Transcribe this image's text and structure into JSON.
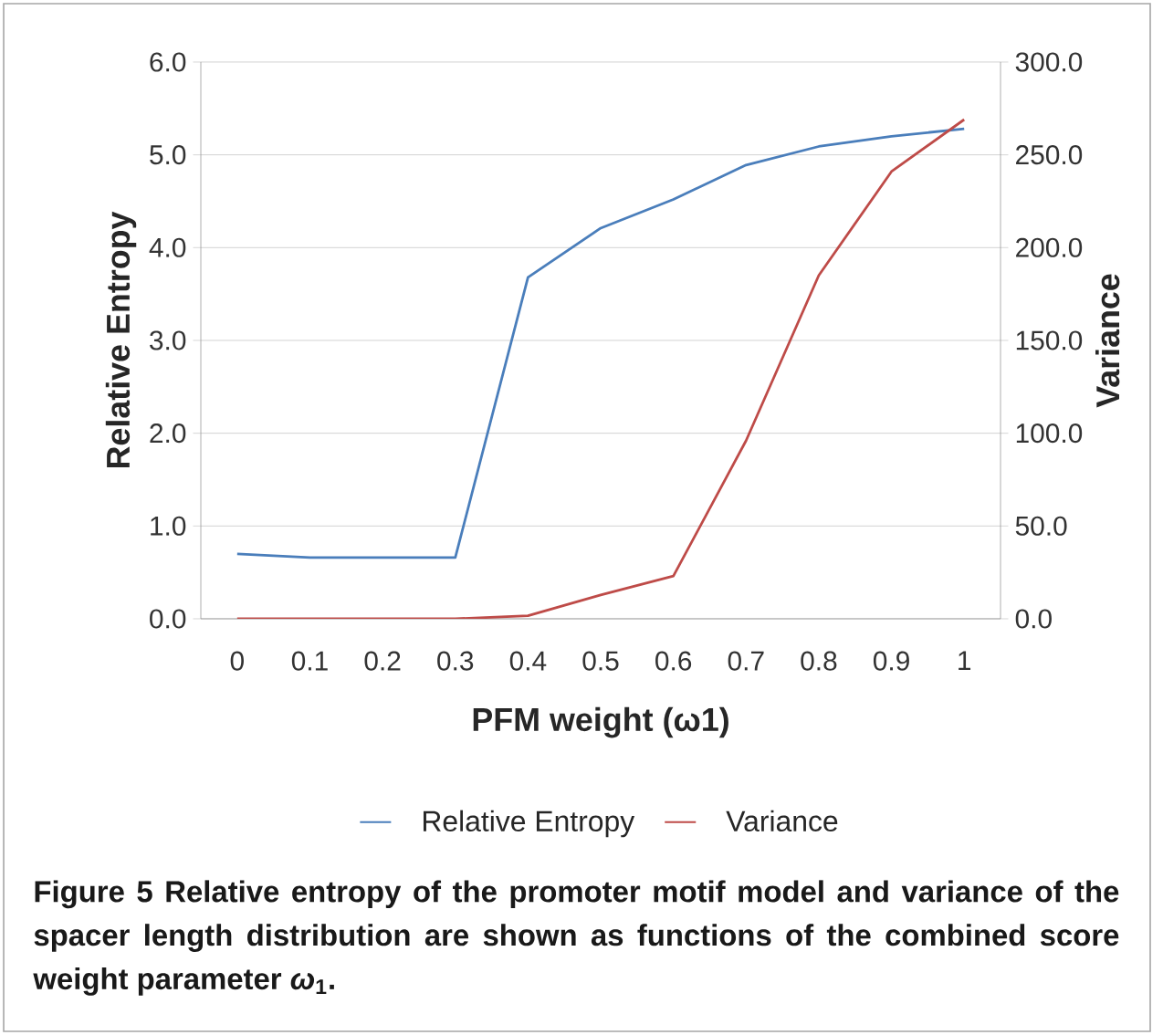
{
  "chart_data": {
    "type": "line",
    "categories": [
      "0",
      "0.1",
      "0.2",
      "0.3",
      "0.4",
      "0.5",
      "0.6",
      "0.7",
      "0.8",
      "0.9",
      "1"
    ],
    "series": [
      {
        "name": "Relative Entropy",
        "color": "#4a7ebb",
        "values": [
          0.7,
          0.66,
          0.66,
          0.66,
          3.68,
          4.21,
          4.52,
          4.89,
          5.09,
          5.2,
          5.28
        ]
      },
      {
        "name": "Variance",
        "color": "#be4b48",
        "axis": "y2",
        "values": [
          0,
          0,
          0,
          0,
          1.6,
          12.8,
          23,
          96,
          185,
          241,
          269
        ]
      }
    ],
    "xlabel": "PFM weight (ω1)",
    "ylabel": "Relative Entropy",
    "y2label": "Variance",
    "ylim": [
      0,
      6
    ],
    "yticks": [
      {
        "value": 0,
        "label": "0.0"
      },
      {
        "value": 1,
        "label": "1.0"
      },
      {
        "value": 2,
        "label": "2.0"
      },
      {
        "value": 3,
        "label": "3.0"
      },
      {
        "value": 4,
        "label": "4.0"
      },
      {
        "value": 5,
        "label": "5.0"
      },
      {
        "value": 6,
        "label": "6.0"
      }
    ],
    "y2lim": [
      0,
      300
    ],
    "y2ticks": [
      {
        "value": 0,
        "label": "0.0"
      },
      {
        "value": 50,
        "label": "50.0"
      },
      {
        "value": 100,
        "label": "100.0"
      },
      {
        "value": 150,
        "label": "150.0"
      },
      {
        "value": 200,
        "label": "200.0"
      },
      {
        "value": 250,
        "label": "250.0"
      },
      {
        "value": 300,
        "label": "300.0"
      }
    ],
    "grid": "y",
    "legend": "bottom",
    "marker": "none",
    "line_style": "solid",
    "annotations": [
      "Figure 5 Relative entropy of the promoter motif model and variance of the spacer length distribution are shown as functions of the combined score weight parameter *ω*$_{1}$."
    ]
  }
}
